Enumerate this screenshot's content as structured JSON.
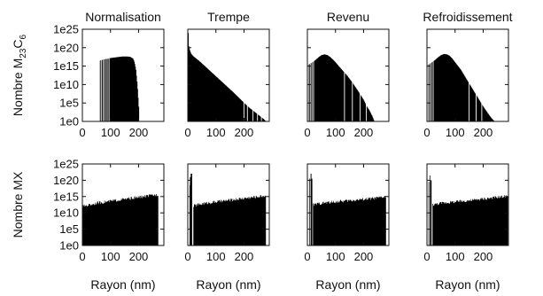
{
  "chart_data": {
    "type": "bar",
    "panels_layout": {
      "rows": 2,
      "cols": 4
    },
    "columns": [
      "Normalisation",
      "Trempe",
      "Revenu",
      "Refroidissement"
    ],
    "row_labels": [
      {
        "prefix": "Nombre M",
        "sub1": "23",
        "mid": "C",
        "sub2": "6"
      },
      {
        "text": "Nombre MX"
      }
    ],
    "xlabel": "Rayon (nm)",
    "xlim": [
      0,
      290
    ],
    "xticks": [
      0,
      100,
      200
    ],
    "ylim_log10": [
      0,
      25
    ],
    "yscale": "log",
    "yticks": [
      "1e0",
      "1e5",
      "1e10",
      "1e15",
      "1e20",
      "1e25"
    ],
    "panels": [
      {
        "row": 0,
        "col": 0,
        "name": "Normalisation M23C6",
        "r": [
          60,
          70,
          80,
          90,
          100,
          110,
          120,
          130,
          140,
          150,
          160,
          170,
          180,
          185,
          190,
          195,
          200,
          202
        ],
        "log10_n": [
          16.5,
          16.7,
          16.9,
          17.0,
          17.2,
          17.3,
          17.4,
          17.5,
          17.6,
          17.6,
          17.6,
          17.5,
          17.0,
          16.0,
          14.0,
          10.0,
          4.0,
          0.5
        ],
        "gaps": [
          62,
          67,
          74,
          80,
          88,
          95
        ]
      },
      {
        "row": 0,
        "col": 1,
        "name": "Trempe M23C6",
        "r": [
          1,
          3,
          6,
          10,
          20,
          30,
          40,
          50,
          60,
          70,
          80,
          90,
          100,
          120,
          140,
          160,
          180,
          200,
          220,
          240,
          250,
          260,
          270,
          278
        ],
        "log10_n": [
          24.0,
          20.5,
          19.5,
          18.5,
          17.6,
          17.0,
          16.4,
          15.7,
          15.0,
          14.3,
          13.6,
          12.9,
          12.2,
          10.8,
          9.4,
          8.0,
          6.5,
          5.0,
          3.6,
          2.4,
          1.8,
          1.2,
          0.6,
          0.0
        ],
        "gaps": [
          200,
          212,
          232,
          248,
          262
        ]
      },
      {
        "row": 0,
        "col": 2,
        "name": "Revenu M23C6",
        "r": [
          5,
          10,
          20,
          30,
          40,
          50,
          60,
          70,
          80,
          90,
          100,
          120,
          140,
          160,
          180,
          200,
          210,
          220,
          230,
          238
        ],
        "log10_n": [
          15.5,
          15.7,
          16.2,
          16.8,
          17.5,
          18.0,
          18.2,
          18.0,
          17.5,
          16.8,
          16.0,
          14.2,
          12.5,
          10.5,
          8.2,
          5.8,
          4.2,
          3.0,
          1.5,
          0.0
        ],
        "gaps": [
          10,
          16,
          22,
          132,
          160,
          188,
          210
        ]
      },
      {
        "row": 0,
        "col": 3,
        "name": "Refroidissement M23C6",
        "r": [
          5,
          10,
          20,
          30,
          40,
          50,
          60,
          70,
          80,
          90,
          100,
          110,
          120,
          140,
          160,
          180,
          200,
          220,
          230,
          240
        ],
        "log10_n": [
          15.5,
          15.7,
          16.2,
          16.8,
          17.5,
          18.0,
          18.3,
          18.2,
          17.8,
          17.0,
          16.0,
          15.0,
          14.0,
          11.5,
          9.0,
          6.5,
          4.0,
          1.8,
          0.8,
          0.0
        ],
        "gaps": [
          9,
          15,
          22,
          150,
          175,
          195
        ]
      },
      {
        "row": 1,
        "col": 0,
        "name": "Normalisation MX",
        "r": [
          0,
          50,
          100,
          150,
          200,
          250,
          270
        ],
        "log10_n": [
          12.0,
          13.0,
          13.6,
          14.2,
          14.8,
          15.4,
          15.6
        ],
        "spikes": [],
        "jagged": true
      },
      {
        "row": 1,
        "col": 1,
        "name": "Trempe MX",
        "r": [
          20,
          50,
          100,
          150,
          200,
          250,
          278
        ],
        "log10_n": [
          12.2,
          12.8,
          13.4,
          13.9,
          14.5,
          15.0,
          15.3
        ],
        "spikes": [
          {
            "r": 7,
            "log10_n": 18.5
          },
          {
            "r": 10,
            "log10_n": 21.0
          },
          {
            "r": 13,
            "log10_n": 22.0
          }
        ],
        "gaps": [
          3,
          5
        ],
        "jagged": true
      },
      {
        "row": 1,
        "col": 2,
        "name": "Revenu MX",
        "r": [
          20,
          50,
          100,
          150,
          200,
          250,
          280
        ],
        "log10_n": [
          12.5,
          13.0,
          13.4,
          13.8,
          14.2,
          14.6,
          15.0
        ],
        "spikes": [
          {
            "r": 8,
            "log10_n": 20.5
          },
          {
            "r": 12,
            "log10_n": 22.0
          },
          {
            "r": 15,
            "log10_n": 20.5
          }
        ],
        "gaps": [
          5,
          10
        ],
        "jagged": true
      },
      {
        "row": 1,
        "col": 3,
        "name": "Refroidissement MX",
        "r": [
          20,
          50,
          100,
          150,
          200,
          250,
          288
        ],
        "log10_n": [
          12.5,
          13.0,
          13.4,
          13.8,
          14.3,
          14.8,
          15.2
        ],
        "spikes": [
          {
            "r": 6,
            "log10_n": 19.5
          },
          {
            "r": 10,
            "log10_n": 21.5
          },
          {
            "r": 14,
            "log10_n": 20.0
          }
        ],
        "gaps": [
          4,
          9
        ],
        "jagged": true
      }
    ]
  }
}
